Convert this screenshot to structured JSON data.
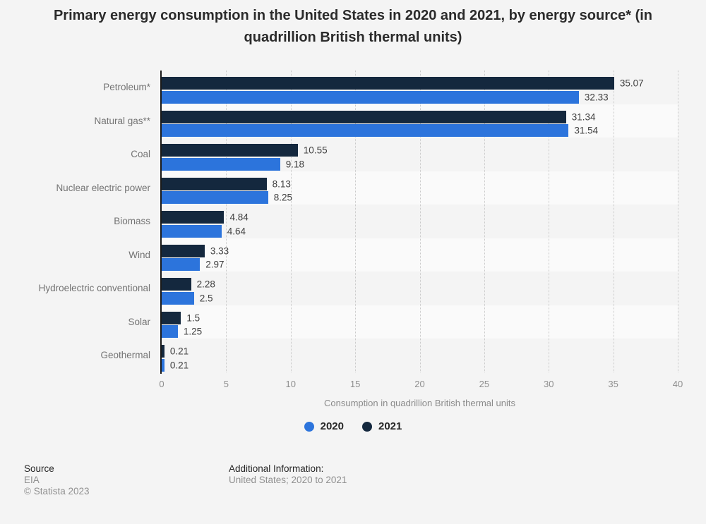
{
  "title": "Primary energy consumption in the United States in 2020 and 2021, by energy source* (in quadrillion British thermal units)",
  "chart_data": {
    "type": "bar",
    "orientation": "horizontal",
    "categories": [
      "Petroleum*",
      "Natural gas**",
      "Coal",
      "Nuclear electric power",
      "Biomass",
      "Wind",
      "Hydroelectric conventional",
      "Solar",
      "Geothermal"
    ],
    "series": [
      {
        "name": "2021",
        "color": "#14283E",
        "values": [
          35.07,
          31.34,
          10.55,
          8.13,
          4.84,
          3.33,
          2.28,
          1.5,
          0.21
        ]
      },
      {
        "name": "2020",
        "color": "#2C74DC",
        "values": [
          32.33,
          31.54,
          9.18,
          8.25,
          4.64,
          2.97,
          2.5,
          1.25,
          0.21
        ]
      }
    ],
    "series_draw_order": "2021 bar on top of each pair, 2020 bar below",
    "xlabel": "Consumption in quadrillion British thermal units",
    "xlim": [
      0,
      40
    ],
    "xticks": [
      0,
      5,
      10,
      15,
      20,
      25,
      30,
      35,
      40
    ],
    "grid": "vertical-dotted",
    "legend": [
      {
        "label": "2020",
        "color": "#2C74DC"
      },
      {
        "label": "2021",
        "color": "#14283E"
      }
    ],
    "legend_position": "bottom-center"
  },
  "footer": {
    "source_label": "Source",
    "source_value": "EIA",
    "copyright": "© Statista 2023",
    "additional_info_label": "Additional Information:",
    "additional_info_value": "United States; 2020 to 2021"
  }
}
